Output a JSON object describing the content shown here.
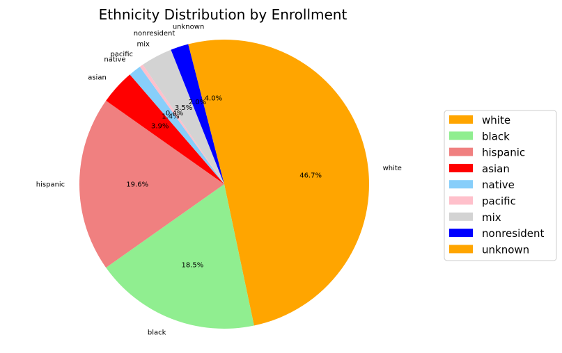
{
  "chart_data": {
    "type": "pie",
    "title": "Ethnicity Distribution by Enrollment",
    "start_angle_deg": 90,
    "direction": "clockwise",
    "slices": [
      {
        "label": "white",
        "pct_text": "46.7%",
        "value": 46.7,
        "color": "#FFA500"
      },
      {
        "label": "black",
        "pct_text": "18.5%",
        "value": 18.5,
        "color": "#90EE90"
      },
      {
        "label": "hispanic",
        "pct_text": "19.6%",
        "value": 19.6,
        "color": "#F08080"
      },
      {
        "label": "asian",
        "pct_text": "3.9%",
        "value": 3.9,
        "color": "#FF0000"
      },
      {
        "label": "native",
        "pct_text": "1.4%",
        "value": 1.4,
        "color": "#87CEFA"
      },
      {
        "label": "pacific",
        "pct_text": "0.4%",
        "value": 0.4,
        "color": "#FFC0CB"
      },
      {
        "label": "mix",
        "pct_text": "3.5%",
        "value": 3.5,
        "color": "#D3D3D3"
      },
      {
        "label": "nonresident",
        "pct_text": "2.0%",
        "value": 2.0,
        "color": "#0000FF"
      },
      {
        "label": "unknown",
        "pct_text": "4.0%",
        "value": 4.0,
        "color": "#FFA500"
      }
    ],
    "legend": {
      "placement": "right",
      "entries": [
        "white",
        "black",
        "hispanic",
        "asian",
        "native",
        "pacific",
        "mix",
        "nonresident",
        "unknown"
      ]
    }
  }
}
